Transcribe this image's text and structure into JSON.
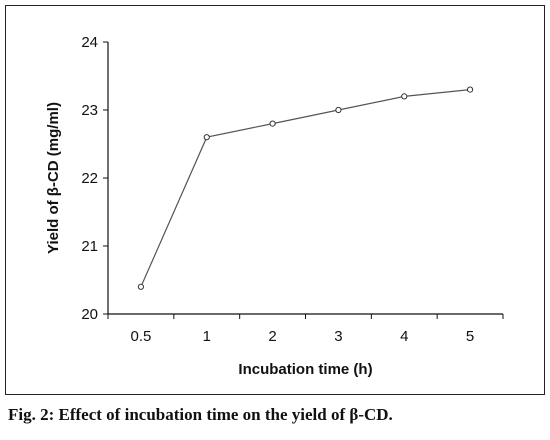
{
  "caption": "Fig. 2: Effect of incubation time on the yield of β-CD.",
  "chart_data": {
    "type": "line",
    "categories": [
      "0.5",
      "1",
      "2",
      "3",
      "4",
      "5"
    ],
    "series": [
      {
        "values": [
          20.4,
          22.6,
          22.8,
          23.0,
          23.2,
          23.3
        ]
      }
    ],
    "xlabel": "Incubation time (h)",
    "ylabel": "Yield of β-CD (mg/ml)",
    "ylim": [
      20,
      24
    ],
    "yticks": [
      20,
      21,
      22,
      23,
      24
    ],
    "grid": false,
    "line_color": "#555555",
    "marker_color": "#333333"
  }
}
